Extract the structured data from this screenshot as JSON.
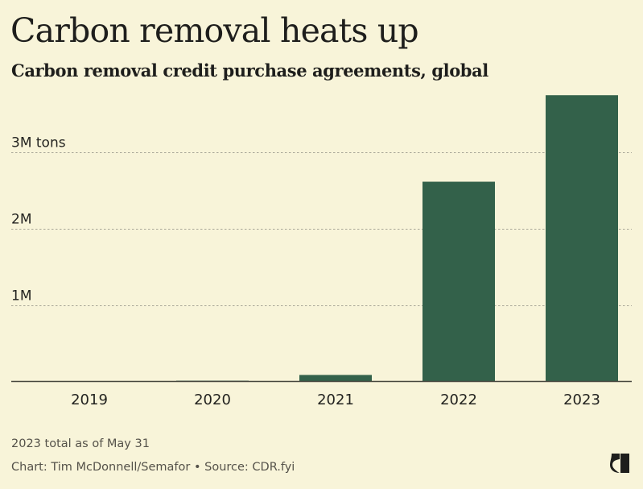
{
  "header": {
    "title": "Carbon removal heats up",
    "subtitle": "Carbon removal credit purchase agreements, global"
  },
  "footer": {
    "note": "2023 total as of May 31",
    "credit": "Chart: Tim McDonnell/Semafor • Source: CDR.fyi",
    "logo": "semafor-logo-icon"
  },
  "colors": {
    "background": "#f8f4d9",
    "bar": "#33614a",
    "gridline": "#a9a798",
    "axis": "#46463d"
  },
  "chart_data": {
    "type": "bar",
    "title": "Carbon removal heats up",
    "subtitle": "Carbon removal credit purchase agreements, global",
    "xlabel": "",
    "ylabel": "tons",
    "categories": [
      "2019",
      "2020",
      "2021",
      "2022",
      "2023"
    ],
    "values": [
      0,
      10000,
      85000,
      2610000,
      3740000
    ],
    "units": "tons",
    "ylim": [
      0,
      3900000
    ],
    "yticks": [
      {
        "value": 1000000,
        "label": "1M"
      },
      {
        "value": 2000000,
        "label": "2M"
      },
      {
        "value": 3000000,
        "label": "3M tons"
      }
    ],
    "grid": "horizontal dashed",
    "legend": "none",
    "annotations": [
      "2023 total as of May 31"
    ]
  }
}
